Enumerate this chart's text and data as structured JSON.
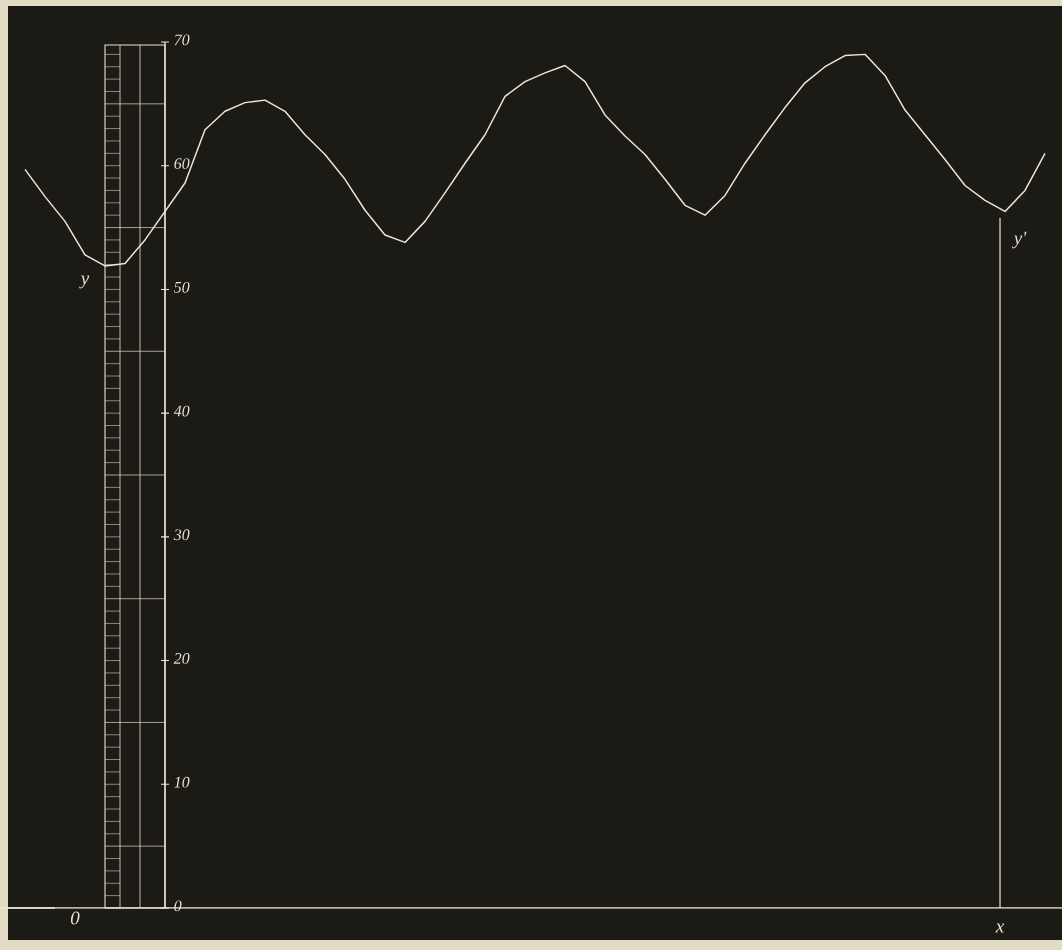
{
  "chart_data": {
    "type": "line",
    "categories": [
      null,
      null,
      null,
      null,
      null,
      null,
      null,
      null,
      null,
      null,
      null,
      null,
      null,
      null,
      null,
      null,
      null,
      null,
      null,
      null,
      null,
      null,
      null,
      null,
      null,
      null,
      null,
      null,
      null,
      null,
      null,
      null,
      null,
      null,
      null,
      null,
      null,
      null,
      null,
      null,
      null,
      null,
      null,
      null,
      null,
      null,
      null,
      null,
      null,
      null,
      null,
      null
    ],
    "series": [
      {
        "color": "#ece8d8",
        "values": [
          59.7,
          57.5,
          55.5,
          52.8,
          51.9,
          52.1,
          54.0,
          56.3,
          58.6,
          62.9,
          64.4,
          65.1,
          65.3,
          64.4,
          62.5,
          60.9,
          58.9,
          56.4,
          54.4,
          53.8,
          55.5,
          57.8,
          60.2,
          62.5,
          65.6,
          66.8,
          67.5,
          68.1,
          66.8,
          64.1,
          62.4,
          60.9,
          58.9,
          56.8,
          56.0,
          57.6,
          60.2,
          62.5,
          64.7,
          66.7,
          68.0,
          68.9,
          69.0,
          67.3,
          64.5,
          62.5,
          60.5,
          58.4,
          57.2,
          56.3,
          58.0,
          61.0
        ]
      }
    ],
    "ylim": [
      0,
      70
    ],
    "yticks": [
      0,
      10,
      20,
      30,
      40,
      50,
      60,
      70
    ],
    "annotations": [
      "y",
      "0",
      "x",
      "y'"
    ]
  }
}
